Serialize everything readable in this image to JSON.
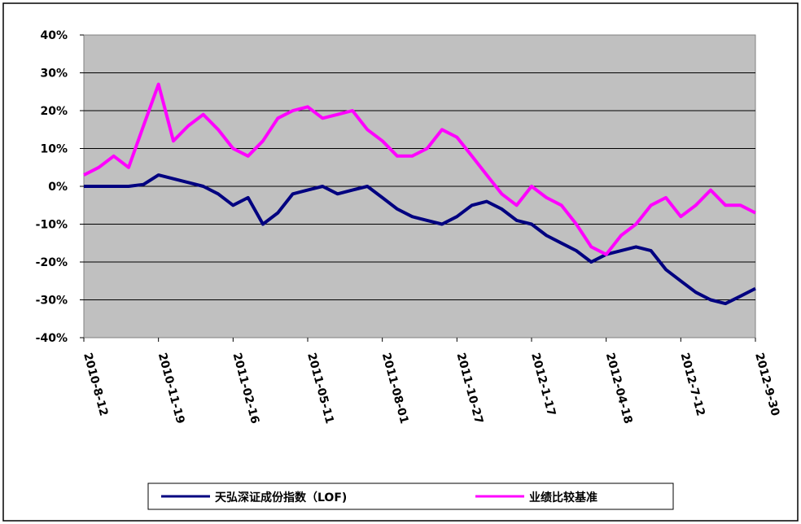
{
  "chart_data": {
    "type": "line",
    "title": "",
    "xlabel": "",
    "ylabel": "",
    "ylim": [
      -40,
      40
    ],
    "y_ticks": [
      40,
      30,
      20,
      10,
      0,
      -10,
      -20,
      -30,
      -40
    ],
    "y_tick_labels": [
      "40%",
      "30%",
      "20%",
      "10%",
      "0%",
      "-10%",
      "-20%",
      "-30%",
      "-40%"
    ],
    "x_tick_labels": [
      "2010-8-12",
      "2010-11-19",
      "2011-02-16",
      "2011-05-11",
      "2011-08-01",
      "2011-10-27",
      "2012-1-17",
      "2012-04-18",
      "2012-7-12",
      "2012-9-30"
    ],
    "grid": "horizontal",
    "plot_background": "#c0c0c0",
    "legend_position": "bottom",
    "x": [
      0.0,
      0.2,
      0.4,
      0.6,
      0.8,
      1.0,
      1.2,
      1.4,
      1.6,
      1.8,
      2.0,
      2.2,
      2.4,
      2.6,
      2.8,
      3.0,
      3.2,
      3.4,
      3.6,
      3.8,
      4.0,
      4.2,
      4.4,
      4.6,
      4.8,
      5.0,
      5.2,
      5.4,
      5.6,
      5.8,
      6.0,
      6.2,
      6.4,
      6.6,
      6.8,
      7.0,
      7.2,
      7.4,
      7.6,
      7.8,
      8.0,
      8.2,
      8.4,
      8.6,
      8.8,
      9.0
    ],
    "series": [
      {
        "name": "天弘深证成份指数（LOF)",
        "color": "#000080",
        "values": [
          0,
          0,
          0,
          0,
          0.5,
          3,
          2,
          1,
          0,
          -2,
          -5,
          -3,
          -10,
          -7,
          -2,
          -1,
          0,
          -2,
          -1,
          0,
          -3,
          -6,
          -8,
          -9,
          -10,
          -8,
          -5,
          -4,
          -6,
          -9,
          -10,
          -13,
          -15,
          -17,
          -20,
          -18,
          -17,
          -16,
          -17,
          -22,
          -25,
          -28,
          -30,
          -31,
          -29,
          -27
        ]
      },
      {
        "name": "业绩比较基准",
        "color": "#ff00ff",
        "values": [
          3,
          5,
          8,
          5,
          16,
          27,
          12,
          16,
          19,
          15,
          10,
          8,
          12,
          18,
          20,
          21,
          18,
          19,
          20,
          15,
          12,
          8,
          8,
          10,
          15,
          13,
          8,
          3,
          -2,
          -5,
          0,
          -3,
          -5,
          -10,
          -16,
          -18,
          -13,
          -10,
          -5,
          -3,
          -8,
          -5,
          -1,
          -5,
          -5,
          -7
        ]
      }
    ]
  }
}
